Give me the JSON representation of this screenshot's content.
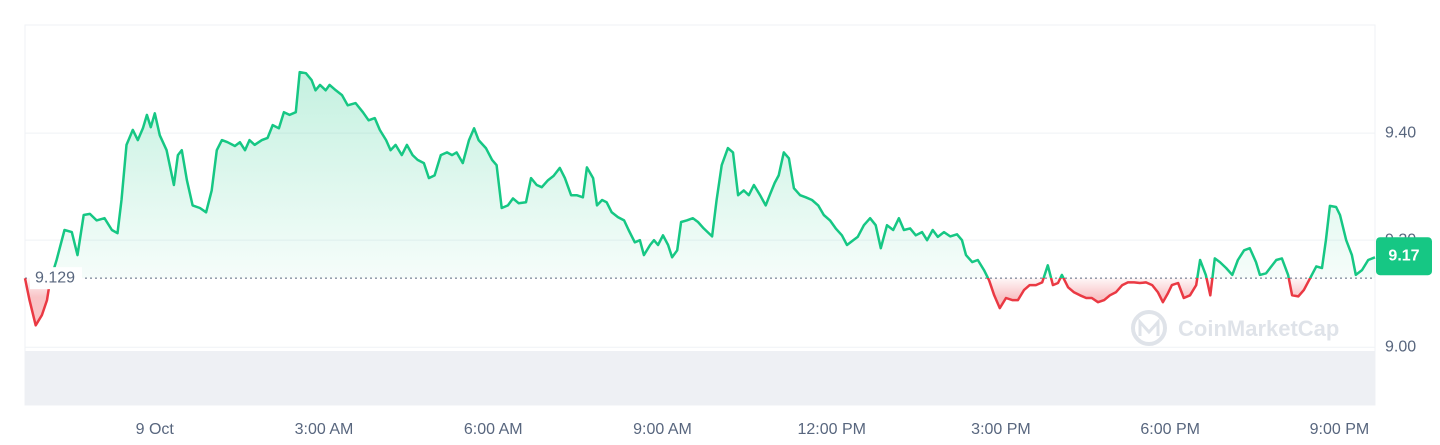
{
  "chart_data": {
    "type": "line",
    "x": [
      -2.3,
      -2.22,
      -2.11,
      -2.0,
      -1.91,
      -1.86,
      -1.74,
      -1.6,
      -1.47,
      -1.37,
      -1.26,
      -1.15,
      -1.03,
      -0.89,
      -0.76,
      -0.66,
      -0.59,
      -0.5,
      -0.39,
      -0.3,
      -0.21,
      -0.14,
      -0.07,
      0,
      0.09,
      0.21,
      0.34,
      0.41,
      0.48,
      0.57,
      0.67,
      0.8,
      0.91,
      1.01,
      1.1,
      1.19,
      1.29,
      1.42,
      1.51,
      1.6,
      1.68,
      1.77,
      1.9,
      2.0,
      2.09,
      2.2,
      2.29,
      2.39,
      2.5,
      2.57,
      2.68,
      2.78,
      2.85,
      2.93,
      3.03,
      3.1,
      3.21,
      3.32,
      3.42,
      3.56,
      3.69,
      3.79,
      3.9,
      3.99,
      4.1,
      4.18,
      4.27,
      4.38,
      4.47,
      4.57,
      4.66,
      4.77,
      4.86,
      4.96,
      5.07,
      5.18,
      5.27,
      5.35,
      5.46,
      5.57,
      5.66,
      5.74,
      5.87,
      5.98,
      6.06,
      6.15,
      6.26,
      6.35,
      6.45,
      6.58,
      6.67,
      6.77,
      6.86,
      6.97,
      7.07,
      7.18,
      7.27,
      7.38,
      7.48,
      7.59,
      7.66,
      7.77,
      7.84,
      7.93,
      8.01,
      8.1,
      8.21,
      8.32,
      8.4,
      8.51,
      8.6,
      8.67,
      8.78,
      8.85,
      8.92,
      9.01,
      9.1,
      9.17,
      9.26,
      9.33,
      9.43,
      9.54,
      9.63,
      9.73,
      9.88,
      9.96,
      10.05,
      10.16,
      10.25,
      10.34,
      10.44,
      10.53,
      10.62,
      10.73,
      10.83,
      10.9,
      10.99,
      11.06,
      11.15,
      11.24,
      11.33,
      11.44,
      11.54,
      11.65,
      11.76,
      11.86,
      11.97,
      12.07,
      12.18,
      12.27,
      12.38,
      12.46,
      12.57,
      12.68,
      12.78,
      12.87,
      12.98,
      13.09,
      13.19,
      13.28,
      13.39,
      13.49,
      13.6,
      13.69,
      13.79,
      13.88,
      13.99,
      14.1,
      14.22,
      14.31,
      14.38,
      14.49,
      14.59,
      14.7,
      14.79,
      14.88,
      14.98,
      15.09,
      15.2,
      15.3,
      15.41,
      15.51,
      15.62,
      15.73,
      15.83,
      15.92,
      16.01,
      16.08,
      16.19,
      16.29,
      16.4,
      16.51,
      16.61,
      16.72,
      16.83,
      16.93,
      17.04,
      17.15,
      17.25,
      17.36,
      17.46,
      17.57,
      17.68,
      17.78,
      17.87,
      17.96,
      18.03,
      18.14,
      18.24,
      18.35,
      18.46,
      18.53,
      18.63,
      18.71,
      18.79,
      18.88,
      18.99,
      19.1,
      19.2,
      19.31,
      19.41,
      19.52,
      19.59,
      19.7,
      19.77,
      19.88,
      19.98,
      20.09,
      20.16,
      20.27,
      20.37,
      20.48,
      20.59,
      20.69,
      20.76,
      20.83,
      20.94,
      21.01,
      21.12,
      21.22,
      21.29,
      21.4,
      21.51,
      21.63
    ],
    "series": [
      {
        "color": "#16c784",
        "down_color": "#ea3943",
        "values": [
          9.129,
          9.088,
          9.041,
          9.06,
          9.088,
          9.121,
          9.163,
          9.219,
          9.215,
          9.172,
          9.247,
          9.249,
          9.237,
          9.241,
          9.219,
          9.213,
          9.275,
          9.378,
          9.406,
          9.387,
          9.409,
          9.434,
          9.411,
          9.437,
          9.396,
          9.368,
          9.303,
          9.359,
          9.368,
          9.312,
          9.265,
          9.26,
          9.252,
          9.293,
          9.368,
          9.387,
          9.383,
          9.376,
          9.383,
          9.368,
          9.387,
          9.378,
          9.387,
          9.391,
          9.415,
          9.409,
          9.439,
          9.434,
          9.439,
          9.514,
          9.512,
          9.499,
          9.48,
          9.49,
          9.48,
          9.49,
          9.48,
          9.471,
          9.452,
          9.456,
          9.439,
          9.424,
          9.428,
          9.406,
          9.387,
          9.368,
          9.378,
          9.359,
          9.378,
          9.359,
          9.35,
          9.344,
          9.316,
          9.321,
          9.359,
          9.364,
          9.359,
          9.364,
          9.344,
          9.387,
          9.409,
          9.387,
          9.372,
          9.35,
          9.34,
          9.26,
          9.265,
          9.278,
          9.269,
          9.271,
          9.316,
          9.303,
          9.299,
          9.312,
          9.32,
          9.335,
          9.316,
          9.284,
          9.284,
          9.28,
          9.336,
          9.316,
          9.265,
          9.275,
          9.271,
          9.252,
          9.243,
          9.237,
          9.219,
          9.196,
          9.2,
          9.172,
          9.191,
          9.2,
          9.191,
          9.209,
          9.191,
          9.168,
          9.181,
          9.234,
          9.237,
          9.241,
          9.234,
          9.222,
          9.207,
          9.275,
          9.34,
          9.372,
          9.364,
          9.284,
          9.293,
          9.284,
          9.303,
          9.284,
          9.265,
          9.284,
          9.307,
          9.321,
          9.364,
          9.353,
          9.297,
          9.284,
          9.28,
          9.275,
          9.265,
          9.247,
          9.237,
          9.222,
          9.209,
          9.191,
          9.2,
          9.206,
          9.228,
          9.241,
          9.228,
          9.185,
          9.228,
          9.219,
          9.241,
          9.219,
          9.222,
          9.209,
          9.215,
          9.2,
          9.219,
          9.206,
          9.215,
          9.207,
          9.211,
          9.2,
          9.172,
          9.159,
          9.163,
          9.144,
          9.125,
          9.097,
          9.073,
          9.092,
          9.088,
          9.088,
          9.107,
          9.116,
          9.116,
          9.121,
          9.153,
          9.116,
          9.12,
          9.135,
          9.112,
          9.103,
          9.097,
          9.092,
          9.092,
          9.084,
          9.088,
          9.097,
          9.103,
          9.116,
          9.121,
          9.121,
          9.12,
          9.121,
          9.116,
          9.103,
          9.084,
          9.101,
          9.116,
          9.12,
          9.092,
          9.097,
          9.116,
          9.163,
          9.135,
          9.097,
          9.166,
          9.159,
          9.148,
          9.135,
          9.163,
          9.181,
          9.185,
          9.159,
          9.135,
          9.138,
          9.148,
          9.163,
          9.166,
          9.135,
          9.097,
          9.095,
          9.107,
          9.129,
          9.151,
          9.148,
          9.2,
          9.264,
          9.262,
          9.247,
          9.2,
          9.172,
          9.135,
          9.144,
          9.163,
          9.168
        ]
      }
    ],
    "baseline": 9.129,
    "current_price": 9.17,
    "xlim": [
      -2.3,
      21.63
    ],
    "xticks": [
      {
        "value": 0,
        "label": "9 Oct"
      },
      {
        "value": 3,
        "label": "3:00 AM"
      },
      {
        "value": 6,
        "label": "6:00 AM"
      },
      {
        "value": 9,
        "label": "9:00 AM"
      },
      {
        "value": 12,
        "label": "12:00 PM"
      },
      {
        "value": 15,
        "label": "3:00 PM"
      },
      {
        "value": 18,
        "label": "6:00 PM"
      },
      {
        "value": 21,
        "label": "9:00 PM"
      }
    ],
    "ylim": [
      8.892,
      9.602
    ],
    "yticks": [
      {
        "value": 9.0,
        "label": "9.00"
      },
      {
        "value": 9.2,
        "label": "9.20"
      },
      {
        "value": 9.4,
        "label": "9.40"
      }
    ],
    "grid": true,
    "watermark": "CoinMarketCap"
  }
}
